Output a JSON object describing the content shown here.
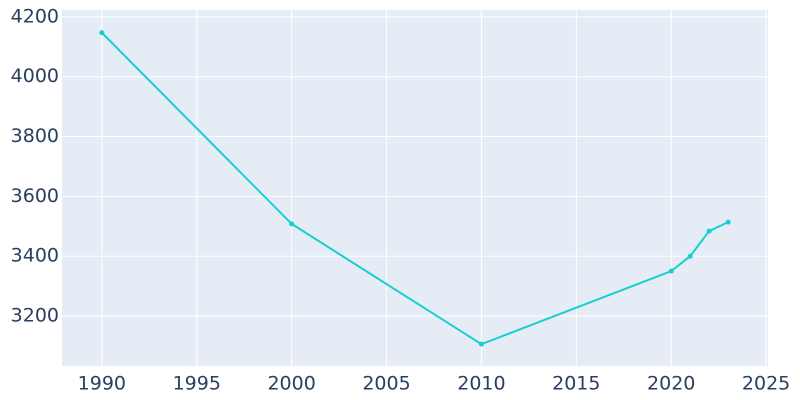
{
  "chart_data": {
    "type": "line",
    "x": [
      1990,
      2000,
      2010,
      2020,
      2021,
      2022,
      2023
    ],
    "series": [
      {
        "color": "#17cfd0",
        "values": [
          4147,
          3508,
          3106,
          3350,
          3400,
          3484,
          3514
        ]
      }
    ],
    "xlim": [
      1987.9,
      2025.1
    ],
    "xticks": [
      1990,
      1995,
      2000,
      2005,
      2010,
      2015,
      2020,
      2025
    ],
    "ylim": [
      3033,
      4223
    ],
    "yticks": [
      3200,
      3400,
      3600,
      3800,
      4000,
      4200
    ],
    "grid": true
  }
}
